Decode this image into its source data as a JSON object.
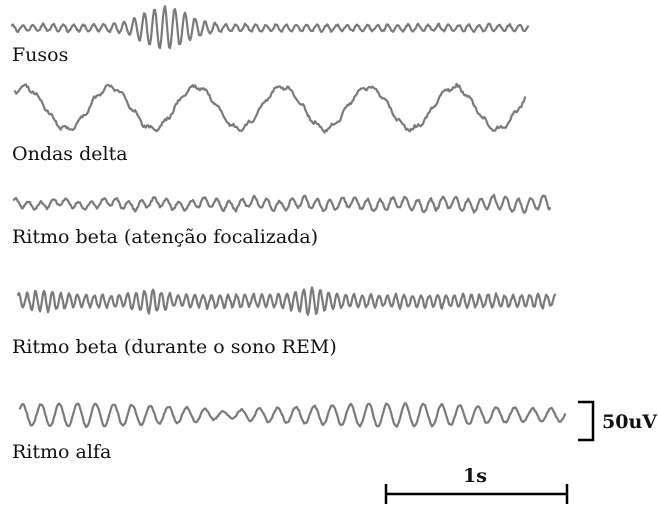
{
  "traces": [
    {
      "id": "spindles",
      "label": "Fusos",
      "color": "#7a7a7a"
    },
    {
      "id": "delta",
      "label": "Ondas delta",
      "color": "#7a7a7a"
    },
    {
      "id": "beta-focused",
      "label": "Ritmo beta (atenção focalizada)",
      "color": "#7a7a7a"
    },
    {
      "id": "beta-rem",
      "label": "Ritmo beta (durante o sono REM)",
      "color": "#7a7a7a"
    },
    {
      "id": "alpha",
      "label": "Ritmo alfa",
      "color": "#7a7a7a"
    }
  ],
  "scale": {
    "amplitude": "50uV",
    "time": "1s"
  }
}
